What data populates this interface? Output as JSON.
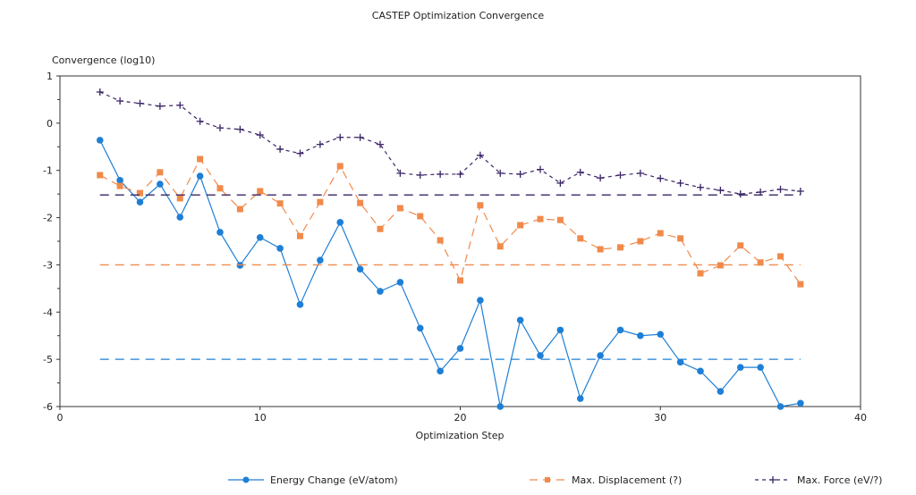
{
  "chart_data": {
    "type": "line",
    "title": "CASTEP Optimization Convergence",
    "xlabel": "Optimization Step",
    "ylabel": "Convergence (log10)",
    "xlim": [
      0,
      40
    ],
    "ylim": [
      -6,
      1
    ],
    "xticks": [
      0,
      10,
      20,
      30,
      40
    ],
    "yticks": [
      1,
      0,
      -1,
      -2,
      -3,
      -4,
      -5,
      -6
    ],
    "grid": false,
    "legend": "bottom",
    "x": [
      2,
      3,
      4,
      5,
      6,
      7,
      8,
      9,
      10,
      11,
      12,
      13,
      14,
      15,
      16,
      17,
      18,
      19,
      20,
      21,
      22,
      23,
      24,
      25,
      26,
      27,
      28,
      29,
      30,
      31,
      32,
      33,
      34,
      35,
      36,
      37
    ],
    "series": [
      {
        "name": "Energy Change (eV/atom)",
        "color": "#1e7fd6",
        "marker": "circle",
        "line": "solid",
        "threshold": -5,
        "values": [
          -0.36,
          -1.21,
          -1.67,
          -1.29,
          -1.99,
          -1.12,
          -2.31,
          -3.01,
          -2.42,
          -2.65,
          -3.84,
          -2.9,
          -2.1,
          -3.09,
          -3.56,
          -3.37,
          -4.34,
          -5.25,
          -4.77,
          -3.75,
          -6.0,
          -4.17,
          -4.92,
          -4.38,
          -5.83,
          -4.92,
          -4.38,
          -4.5,
          -4.47,
          -5.06,
          -5.25,
          -5.68,
          -5.17,
          -5.17,
          -6.0,
          -5.93
        ]
      },
      {
        "name": "Max. Displacement (?)",
        "color": "#f08a4b",
        "marker": "square",
        "line": "dashed",
        "threshold": -3,
        "values": [
          -1.1,
          -1.33,
          -1.48,
          -1.04,
          -1.59,
          -0.76,
          -1.38,
          -1.82,
          -1.44,
          -1.7,
          -2.39,
          -1.67,
          -0.91,
          -1.69,
          -2.24,
          -1.8,
          -1.97,
          -2.48,
          -3.33,
          -1.74,
          -2.61,
          -2.16,
          -2.03,
          -2.05,
          -2.44,
          -2.67,
          -2.63,
          -2.5,
          -2.33,
          -2.44,
          -3.18,
          -3.01,
          -2.59,
          -2.95,
          -2.82,
          -3.41
        ]
      },
      {
        "name": "Max. Force (eV/?)",
        "color": "#3a2466",
        "marker": "plus",
        "line": "dotted",
        "threshold": -1.52,
        "values": [
          0.66,
          0.47,
          0.42,
          0.36,
          0.38,
          0.04,
          -0.1,
          -0.13,
          -0.25,
          -0.55,
          -0.64,
          -0.45,
          -0.3,
          -0.3,
          -0.45,
          -1.06,
          -1.1,
          -1.08,
          -1.08,
          -0.68,
          -1.06,
          -1.08,
          -0.98,
          -1.27,
          -1.04,
          -1.16,
          -1.1,
          -1.06,
          -1.17,
          -1.27,
          -1.36,
          -1.42,
          -1.5,
          -1.46,
          -1.4,
          -1.44
        ]
      }
    ]
  }
}
